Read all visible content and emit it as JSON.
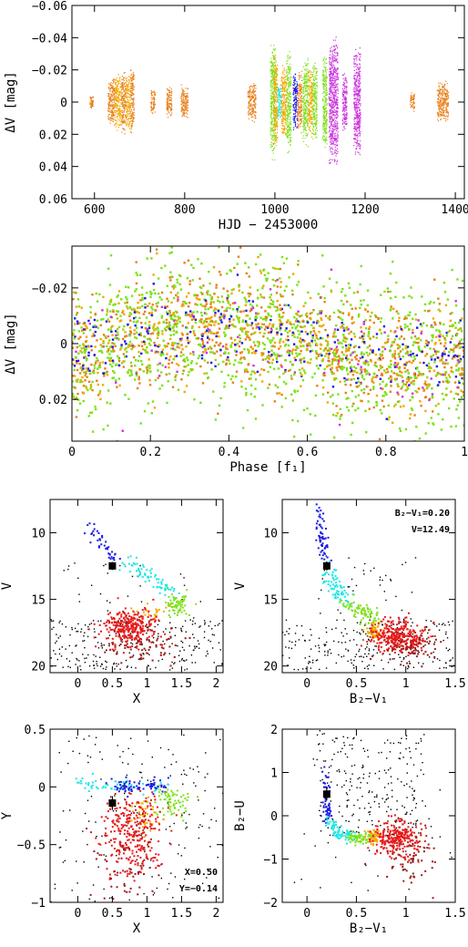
{
  "colors": {
    "orange": "#e8801c",
    "gold": "#f2a800",
    "green": "#7ee11a",
    "cyan": "#1ee6e6",
    "blue": "#1a1ae6",
    "magenta": "#cc33dd",
    "red": "#e61a1a",
    "darkred": "#9a1a1a",
    "black": "#000000"
  },
  "chart_data": [
    {
      "id": "lightcurve",
      "type": "scatter",
      "xlabel": "HJD − 2453000",
      "ylabel": "ΔV [mag]",
      "xlim": [
        550,
        1420
      ],
      "ylim": [
        0.06,
        -0.06
      ],
      "xticks": [
        "600",
        "800",
        "1000",
        "1200",
        "1400"
      ],
      "yticks": [
        "−0.06",
        "−0.04",
        "−0.02",
        "0",
        "0.02",
        "0.04",
        "0.06"
      ],
      "groups": [
        {
          "x": [
            590,
            598
          ],
          "color": "orange",
          "amp": 0.004
        },
        {
          "x": [
            630,
            645
          ],
          "color": "orange",
          "amp": 0.016
        },
        {
          "x": [
            645,
            660
          ],
          "color": "gold",
          "amp": 0.018
        },
        {
          "x": [
            660,
            670
          ],
          "color": "orange",
          "amp": 0.02
        },
        {
          "x": [
            670,
            680
          ],
          "color": "gold",
          "amp": 0.019
        },
        {
          "x": [
            680,
            688
          ],
          "color": "orange",
          "amp": 0.022
        },
        {
          "x": [
            725,
            735
          ],
          "color": "orange",
          "amp": 0.008
        },
        {
          "x": [
            760,
            772
          ],
          "color": "orange",
          "amp": 0.01
        },
        {
          "x": [
            792,
            808
          ],
          "color": "orange",
          "amp": 0.011
        },
        {
          "x": [
            940,
            958
          ],
          "color": "orange",
          "amp": 0.013
        },
        {
          "x": [
            990,
            1003
          ],
          "color": "green",
          "amp": 0.038
        },
        {
          "x": [
            997,
            1006
          ],
          "color": "gold",
          "amp": 0.03
        },
        {
          "x": [
            1006,
            1014
          ],
          "color": "cyan",
          "amp": 0.012
        },
        {
          "x": [
            1014,
            1026
          ],
          "color": "gold",
          "amp": 0.024
        },
        {
          "x": [
            1026,
            1036
          ],
          "color": "green",
          "amp": 0.033
        },
        {
          "x": [
            1040,
            1050
          ],
          "color": "blue",
          "amp": 0.018
        },
        {
          "x": [
            1050,
            1060
          ],
          "color": "orange",
          "amp": 0.02
        },
        {
          "x": [
            1062,
            1074
          ],
          "color": "green",
          "amp": 0.028
        },
        {
          "x": [
            1074,
            1084
          ],
          "color": "gold",
          "amp": 0.022
        },
        {
          "x": [
            1084,
            1094
          ],
          "color": "green",
          "amp": 0.026
        },
        {
          "x": [
            1106,
            1116
          ],
          "color": "green",
          "amp": 0.033
        },
        {
          "x": [
            1120,
            1140
          ],
          "color": "magenta",
          "amp": 0.042
        },
        {
          "x": [
            1150,
            1160
          ],
          "color": "magenta",
          "amp": 0.02
        },
        {
          "x": [
            1175,
            1190
          ],
          "color": "magenta",
          "amp": 0.036
        },
        {
          "x": [
            1300,
            1310
          ],
          "color": "orange",
          "amp": 0.006
        },
        {
          "x": [
            1360,
            1385
          ],
          "color": "orange",
          "amp": 0.014
        }
      ]
    },
    {
      "id": "phased",
      "type": "scatter",
      "xlabel": "Phase [f₁]",
      "ylabel": "ΔV [mag]",
      "xlim": [
        0,
        1
      ],
      "ylim": [
        0.035,
        -0.035
      ],
      "xticks": [
        "0",
        "0.2",
        "0.4",
        "0.6",
        "0.8",
        "1"
      ],
      "yticks": [
        "−0.02",
        "0",
        "0.02"
      ],
      "semi_amplitude": 0.006,
      "colors": [
        "green",
        "orange",
        "gold",
        "blue",
        "magenta"
      ]
    },
    {
      "id": "cmd-v-x",
      "type": "scatter",
      "xlabel": "X",
      "ylabel": "V",
      "xlim": [
        -0.4,
        2.1
      ],
      "ylim": [
        20.5,
        7.5
      ],
      "xticks": [
        "0",
        "0.5",
        "1",
        "1.5",
        "2"
      ],
      "yticks": [
        "10",
        "15",
        "20"
      ],
      "star": {
        "x": 0.5,
        "y": 12.49,
        "err": 0.3
      },
      "annotation": []
    },
    {
      "id": "cmd-v-b2v1",
      "type": "scatter",
      "xlabel": "B₂−V₁",
      "ylabel": "V",
      "xlim": [
        -0.25,
        1.5
      ],
      "ylim": [
        20.5,
        7.5
      ],
      "xticks": [
        "0",
        "0.5",
        "1",
        "1.5"
      ],
      "yticks": [
        "10",
        "15",
        "20"
      ],
      "star": {
        "x": 0.2,
        "y": 12.49,
        "err": 0.35
      },
      "annotation": [
        "B₂−V₁=0.20",
        "V=12.49"
      ]
    },
    {
      "id": "ccd-y-x",
      "type": "scatter",
      "xlabel": "X",
      "ylabel": "Y",
      "xlim": [
        -0.4,
        2.1
      ],
      "ylim": [
        -1,
        0.5
      ],
      "xticks": [
        "0",
        "0.5",
        "1",
        "1.5",
        "2"
      ],
      "yticks": [
        "0.5",
        "0",
        "−0.5",
        "−1"
      ],
      "star": {
        "x": 0.5,
        "y": -0.14,
        "err": 0.06
      },
      "annotation": [
        "X=0.50",
        "Y=−0.14"
      ]
    },
    {
      "id": "ccd-b2u-b2v1",
      "type": "scatter",
      "xlabel": "B₂−V₁",
      "ylabel": "B₂−U",
      "xlim": [
        -0.25,
        1.5
      ],
      "ylim": [
        -2,
        2
      ],
      "xticks": [
        "0",
        "0.5",
        "1",
        "1.5"
      ],
      "yticks": [
        "2",
        "1",
        "0",
        "−1",
        "−2"
      ],
      "star": {
        "x": 0.2,
        "y": 0.5,
        "err": 0.15
      },
      "annotation": []
    }
  ]
}
